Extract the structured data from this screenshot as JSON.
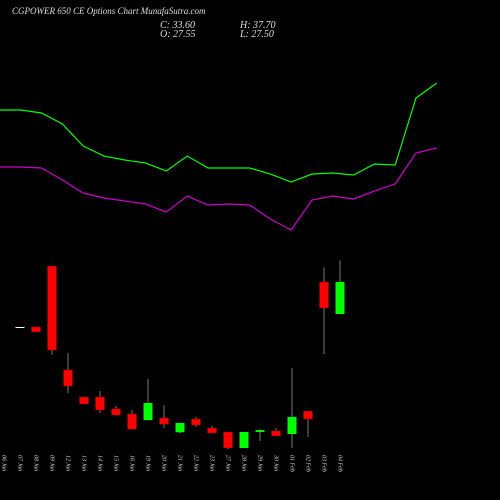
{
  "chart_data": {
    "type": "candlestick",
    "title": "CGPOWER 650 CE Options Chart MunafaSutra.com",
    "ohlc_labels": [
      "C: 33.60",
      "H: 37.70",
      "O: 27.55",
      "L: 27.50"
    ],
    "categories": [
      "06 Jan",
      "07 Jan",
      "08 Jan",
      "09 Jan",
      "12 Jan",
      "13 Jan",
      "14 Jan",
      "15 Jan",
      "16 Jan",
      "19 Jan",
      "20 Jan",
      "21 Jan",
      "22 Jan",
      "23 Jan",
      "27 Jan",
      "28 Jan",
      "29 Jan",
      "30 Jan",
      "01 Feb",
      "02 Feb",
      "03 Feb",
      "04 Feb"
    ],
    "open": [
      null,
      25.1,
      25.1,
      36.6,
      16.97,
      11.87,
      11.87,
      9.6,
      8.65,
      7.5,
      7.9,
      5.2,
      7.7,
      6.0,
      5.25,
      2.23,
      5.25,
      5.44,
      4.87,
      9.2,
      33.6,
      27.55
    ],
    "high": [
      null,
      25.1,
      25.1,
      36.6,
      20.2,
      11.87,
      13.0,
      10.2,
      9.4,
      15.3,
      10.35,
      6.95,
      8.1,
      6.4,
      5.25,
      5.25,
      5.8,
      6.0,
      17.3,
      9.2,
      36.4,
      37.7
    ],
    "low": [
      null,
      25.1,
      24.15,
      19.8,
      12.6,
      10.54,
      8.84,
      8.46,
      5.8,
      7.5,
      6.0,
      5.0,
      6.2,
      5.06,
      2.04,
      2.23,
      3.55,
      4.5,
      2.23,
      4.3,
      20.0,
      27.5
    ],
    "close": [
      null,
      25.1,
      24.15,
      20.75,
      13.94,
      10.54,
      9.4,
      8.46,
      5.8,
      10.73,
      6.76,
      6.95,
      6.57,
      5.06,
      2.23,
      5.25,
      5.6,
      4.5,
      8.1,
      7.7,
      28.7,
      33.6
    ],
    "up_color": "#00ff00",
    "down_color": "#ff0000",
    "flat_color": "#ffffff",
    "lines": [
      {
        "color": "#00ff00",
        "values": [
          66.11,
          66.11,
          65.54,
          63.46,
          59.3,
          57.41,
          56.66,
          56.09,
          54.58,
          57.41,
          55.15,
          55.15,
          55.15,
          54.01,
          52.5,
          54.01,
          54.2,
          53.82,
          55.9,
          55.71,
          68.38,
          71.21
        ]
      },
      {
        "color": "#cc00cc",
        "values": [
          55.34,
          55.34,
          55.15,
          52.88,
          50.42,
          49.48,
          48.91,
          48.34,
          46.83,
          49.85,
          48.15,
          48.34,
          48.15,
          45.51,
          43.43,
          49.1,
          49.85,
          49.29,
          50.8,
          52.12,
          57.98,
          58.93
        ]
      }
    ],
    "ylim": [
      -7.6,
      86.9
    ]
  }
}
